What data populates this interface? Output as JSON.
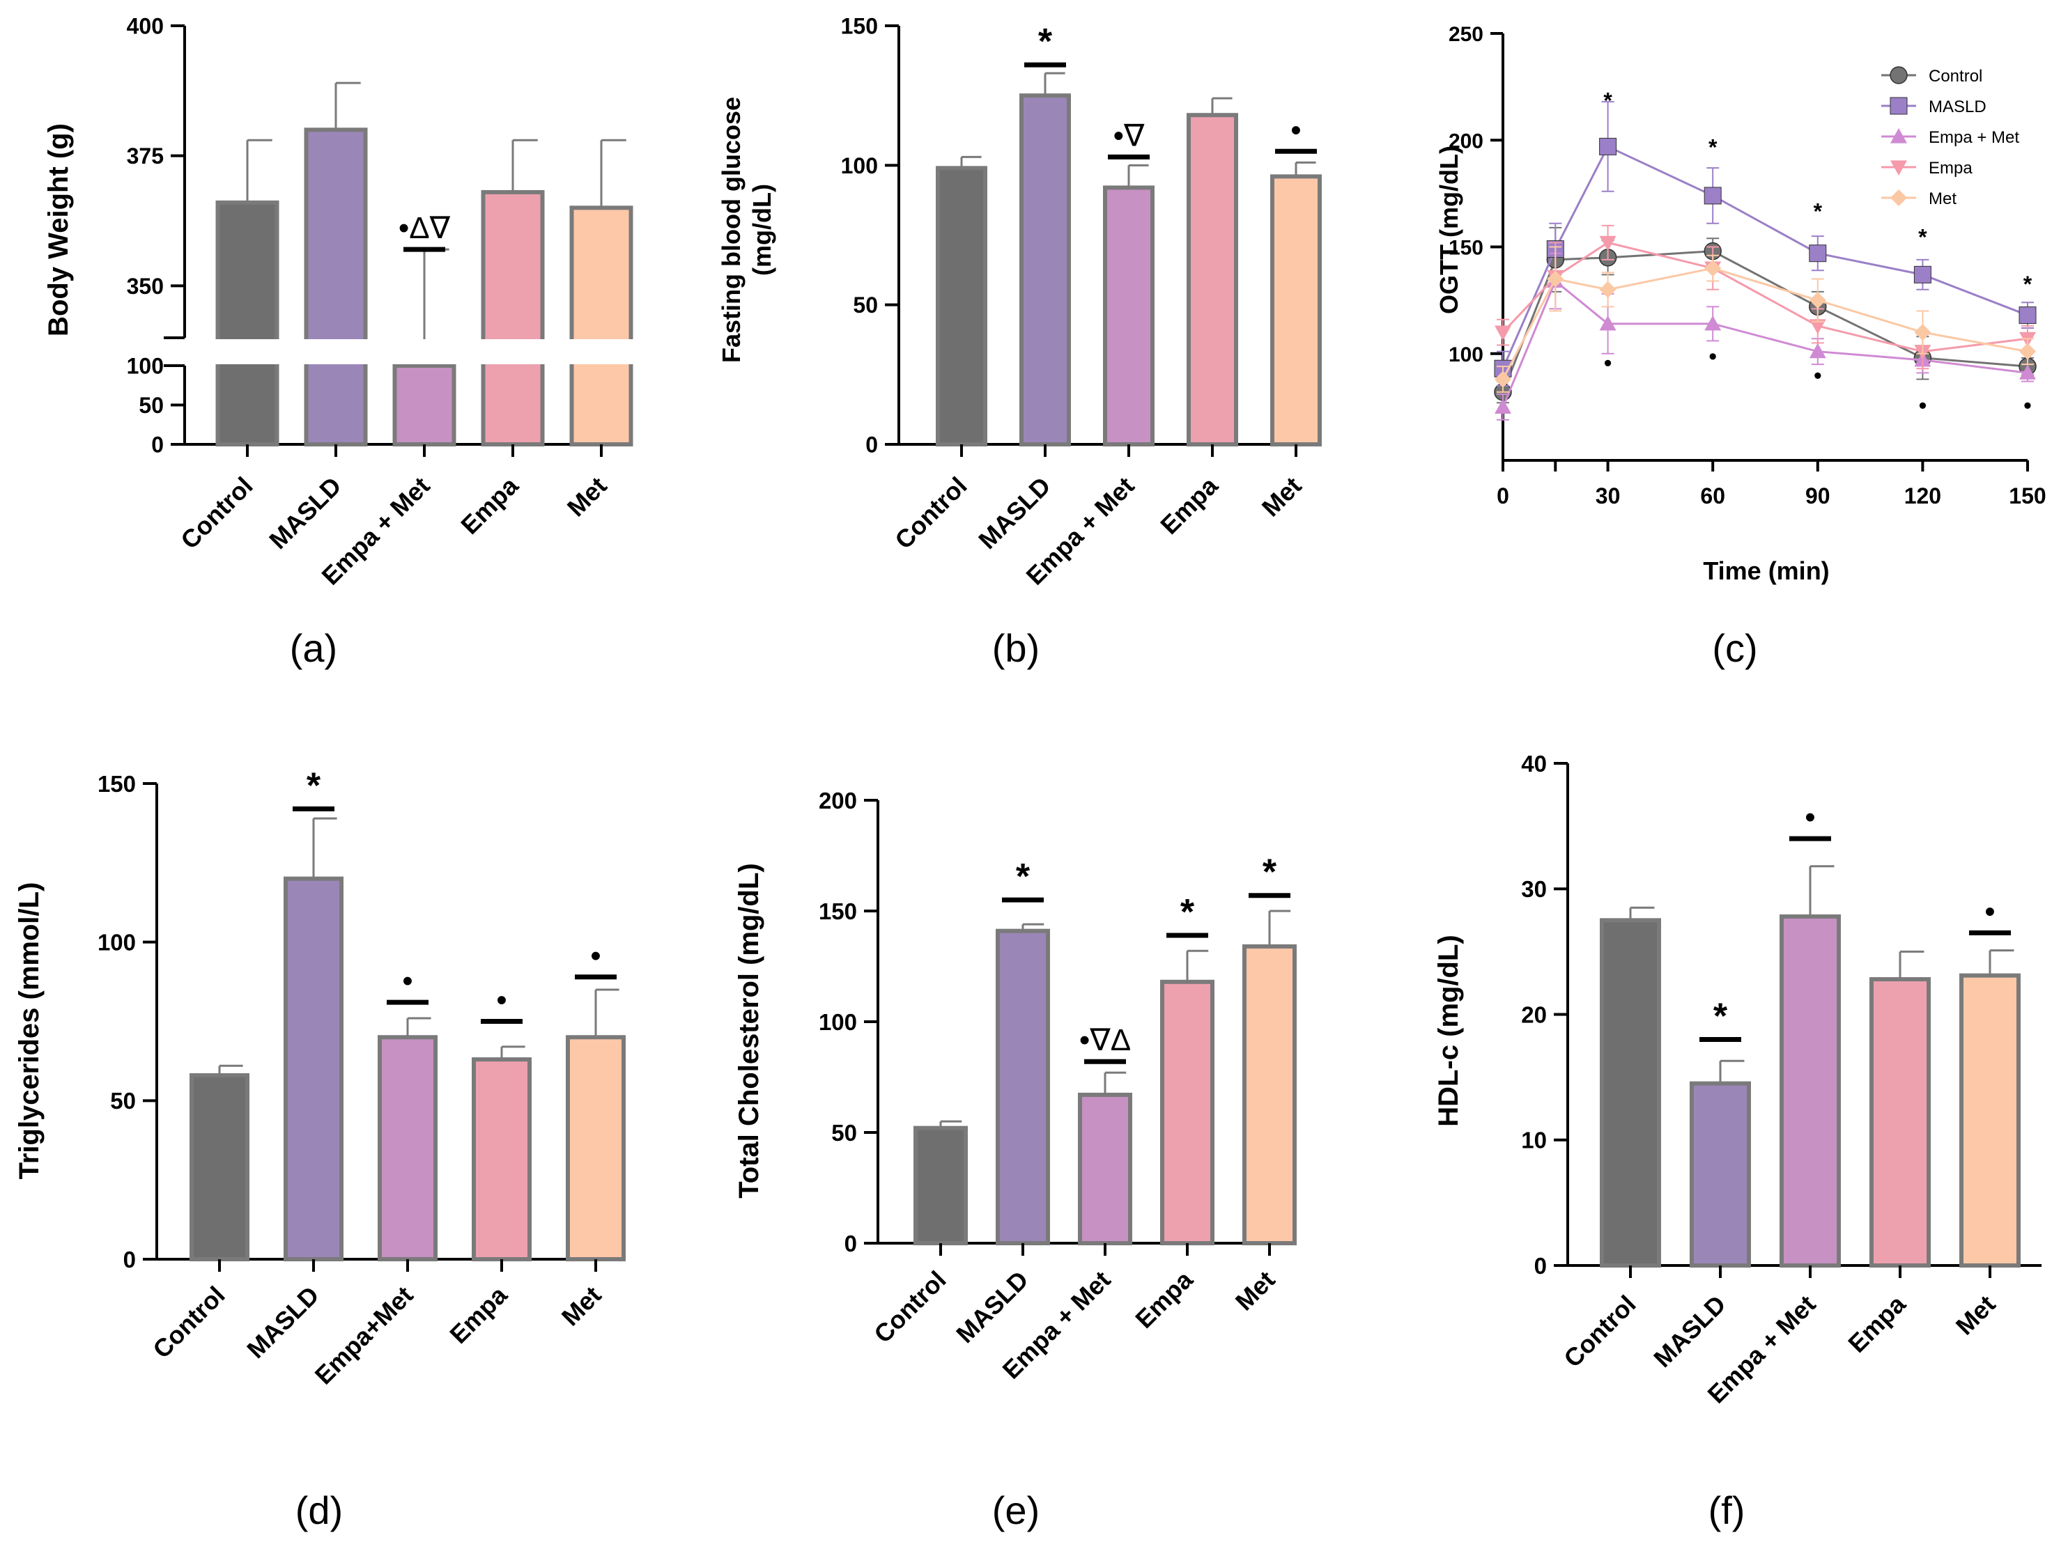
{
  "figure": {
    "colors": {
      "Control": "#6f6f6f",
      "MASLD": "#9b86b8",
      "Empa + Met": "#c791c3",
      "Empa": "#eda1af",
      "Met": "#fdc8a8",
      "bar_edge": "#7a7a7a",
      "axis": "#000000"
    },
    "line_colors": {
      "Control": "#737373",
      "MASLD": "#9b7fc7",
      "Empa + Met": "#cf8ad3",
      "Empa": "#f59aaa",
      "Met": "#fbc8a4"
    }
  },
  "chart_data": [
    {
      "id": "a",
      "type": "bar",
      "panel_label": "a",
      "ylabel": "Body Weight  (g)",
      "categories": [
        "Control",
        "MASLD",
        "Empa + Met",
        "Empa",
        "Met"
      ],
      "values": [
        366,
        380,
        339,
        368,
        365
      ],
      "errors": [
        12,
        9,
        18,
        10,
        13
      ],
      "axis_break": true,
      "upper_ylim": [
        340,
        400
      ],
      "upper_ticks": [
        "350",
        "375",
        "400"
      ],
      "lower_ylim": [
        0,
        100
      ],
      "lower_ticks": [
        "0",
        "50",
        "100"
      ],
      "annotations": [
        {
          "category": "Empa + Met",
          "text": "•Δ∇",
          "bar_at": 357
        }
      ]
    },
    {
      "id": "b",
      "type": "bar",
      "panel_label": "b",
      "ylabel_lines": [
        "Fasting blood glucose",
        "(mg/dL)"
      ],
      "categories": [
        "Control",
        "MASLD",
        "Empa + Met",
        "Empa",
        "Met"
      ],
      "values": [
        99,
        125,
        92,
        118,
        96
      ],
      "errors": [
        4,
        8,
        8,
        6,
        5
      ],
      "ylim": [
        0,
        150
      ],
      "ticks": [
        "0",
        "50",
        "100",
        "150"
      ],
      "annotations": [
        {
          "category": "MASLD",
          "text": "*",
          "bar_at": 136
        },
        {
          "category": "Empa + Met",
          "text": "•∇",
          "bar_at": 103
        },
        {
          "category": "Met",
          "text": "•",
          "bar_at": 105
        }
      ]
    },
    {
      "id": "c",
      "type": "line",
      "panel_label": "c",
      "ylabel": "OGTT  (mg/dL)",
      "xlabel": "Time (min)",
      "xlim": [
        0,
        150
      ],
      "ylim": [
        50,
        250
      ],
      "xticks": [
        "0",
        "30",
        "60",
        "90",
        "120",
        "150"
      ],
      "yticks": [
        "100",
        "150",
        "200",
        "250"
      ],
      "x": [
        0,
        15,
        30,
        60,
        90,
        120,
        150
      ],
      "series": [
        {
          "name": "Control",
          "marker": "circle",
          "values": [
            82,
            144,
            145,
            148,
            122,
            98,
            94
          ],
          "errors": [
            5,
            15,
            8,
            6,
            7,
            10,
            4
          ]
        },
        {
          "name": "MASLD",
          "marker": "square",
          "values": [
            93,
            149,
            197,
            174,
            147,
            137,
            118
          ],
          "errors": [
            8,
            12,
            21,
            13,
            8,
            7,
            6
          ]
        },
        {
          "name": "Empa + Met",
          "marker": "triangle-up",
          "values": [
            75,
            134,
            114,
            114,
            101,
            97,
            91
          ],
          "errors": [
            6,
            13,
            14,
            8,
            6,
            6,
            4
          ]
        },
        {
          "name": "Empa",
          "marker": "triangle-down",
          "values": [
            110,
            136,
            152,
            140,
            113,
            101,
            107
          ],
          "errors": [
            6,
            16,
            8,
            10,
            8,
            8,
            6
          ]
        },
        {
          "name": "Met",
          "marker": "diamond",
          "values": [
            88,
            135,
            130,
            140,
            125,
            110,
            101
          ],
          "errors": [
            6,
            15,
            8,
            6,
            10,
            10,
            6
          ]
        }
      ],
      "star_marks": [
        {
          "x": 30,
          "y": 215,
          "text": "*"
        },
        {
          "x": 60,
          "y": 193,
          "text": "*"
        },
        {
          "x": 90,
          "y": 163,
          "text": "*"
        },
        {
          "x": 120,
          "y": 151,
          "text": "*"
        },
        {
          "x": 150,
          "y": 129,
          "text": "*"
        }
      ],
      "dot_marks": [
        {
          "x": 30,
          "y": 92,
          "text": "•"
        },
        {
          "x": 60,
          "y": 95,
          "text": "•"
        },
        {
          "x": 90,
          "y": 86,
          "text": "•"
        },
        {
          "x": 120,
          "y": 72,
          "text": "•"
        },
        {
          "x": 150,
          "y": 72,
          "text": "•"
        }
      ],
      "legend_position": "top-right"
    },
    {
      "id": "d",
      "type": "bar",
      "panel_label": "d",
      "ylabel": "Triglycerides (mmol/L)",
      "categories": [
        "Control",
        "MASLD",
        "Empa+Met",
        "Empa",
        "Met"
      ],
      "values": [
        58,
        120,
        70,
        63,
        70
      ],
      "errors": [
        3,
        19,
        6,
        4,
        15
      ],
      "ylim": [
        0,
        150
      ],
      "ticks": [
        "0",
        "50",
        "100",
        "150"
      ],
      "annotations": [
        {
          "category": "MASLD",
          "text": "*",
          "bar_at": 142
        },
        {
          "category": "Empa+Met",
          "text": "•",
          "bar_at": 81
        },
        {
          "category": "Empa",
          "text": "•",
          "bar_at": 75
        },
        {
          "category": "Met",
          "text": "•",
          "bar_at": 89
        }
      ]
    },
    {
      "id": "e",
      "type": "bar",
      "panel_label": "e",
      "ylabel": "Total Cholesterol (mg/dL)",
      "categories": [
        "Control",
        "MASLD",
        "Empa + Met",
        "Empa",
        "Met"
      ],
      "values": [
        52,
        141,
        67,
        118,
        134
      ],
      "errors": [
        3,
        3,
        10,
        14,
        16
      ],
      "ylim": [
        0,
        200
      ],
      "ticks": [
        "0",
        "50",
        "100",
        "150",
        "200"
      ],
      "annotations": [
        {
          "category": "MASLD",
          "text": "*",
          "bar_at": 155
        },
        {
          "category": "Empa + Met",
          "text": "•∇Δ",
          "bar_at": 82
        },
        {
          "category": "Empa",
          "text": "*",
          "bar_at": 139
        },
        {
          "category": "Met",
          "text": "*",
          "bar_at": 157
        }
      ]
    },
    {
      "id": "f",
      "type": "bar",
      "panel_label": "f",
      "ylabel": "HDL-c (mg/dL)",
      "categories": [
        "Control",
        "MASLD",
        "Empa + Met",
        "Empa",
        "Met"
      ],
      "values": [
        27.5,
        14.5,
        27.8,
        22.8,
        23.1
      ],
      "errors": [
        1,
        1.8,
        4,
        2.2,
        2
      ],
      "ylim": [
        0,
        40
      ],
      "ticks": [
        "0",
        "10",
        "20",
        "30",
        "40"
      ],
      "annotations": [
        {
          "category": "MASLD",
          "text": "*",
          "bar_at": 18
        },
        {
          "category": "Empa + Met",
          "text": "•",
          "bar_at": 34
        },
        {
          "category": "Met",
          "text": "•",
          "bar_at": 26.5
        }
      ]
    }
  ]
}
